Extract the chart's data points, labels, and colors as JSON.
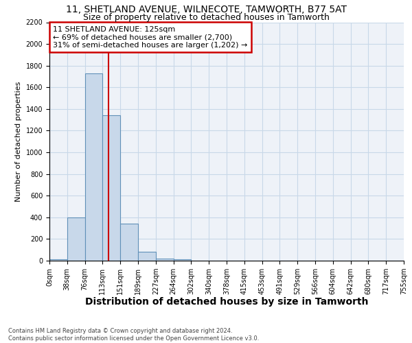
{
  "title1": "11, SHETLAND AVENUE, WILNECOTE, TAMWORTH, B77 5AT",
  "title2": "Size of property relative to detached houses in Tamworth",
  "xlabel": "Distribution of detached houses by size in Tamworth",
  "ylabel": "Number of detached properties",
  "footnote1": "Contains HM Land Registry data © Crown copyright and database right 2024.",
  "footnote2": "Contains public sector information licensed under the Open Government Licence v3.0.",
  "annotation_line1": "11 SHETLAND AVENUE: 125sqm",
  "annotation_line2": "← 69% of detached houses are smaller (2,700)",
  "annotation_line3": "31% of semi-detached houses are larger (1,202) →",
  "bar_values": [
    10,
    400,
    1730,
    1340,
    340,
    80,
    20,
    10,
    0,
    0,
    0,
    0,
    0,
    0,
    0,
    0,
    0,
    0,
    0,
    0
  ],
  "bar_color": "#c8d8ea",
  "bar_edge_color": "#6090b8",
  "red_line_color": "#cc0000",
  "annotation_box_color": "#cc0000",
  "grid_color": "#c8d8e8",
  "background_color": "#eef2f8",
  "ylim": [
    0,
    2200
  ],
  "tick_labels": [
    "0sqm",
    "38sqm",
    "76sqm",
    "113sqm",
    "151sqm",
    "189sqm",
    "227sqm",
    "264sqm",
    "302sqm",
    "340sqm",
    "378sqm",
    "415sqm",
    "453sqm",
    "491sqm",
    "529sqm",
    "566sqm",
    "604sqm",
    "642sqm",
    "680sqm",
    "717sqm",
    "755sqm"
  ],
  "title_fontsize": 10,
  "subtitle_fontsize": 9,
  "xlabel_fontsize": 10,
  "ylabel_fontsize": 8,
  "tick_fontsize": 7,
  "annotation_fontsize": 8,
  "footnote_fontsize": 6,
  "red_line_x": 3.316
}
